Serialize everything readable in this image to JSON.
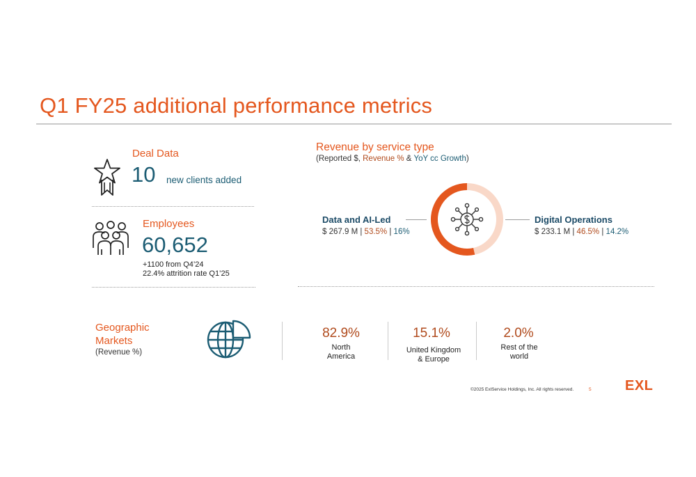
{
  "title": "Q1 FY25 additional performance metrics",
  "deal": {
    "label": "Deal Data",
    "value": "10",
    "caption": "new clients added"
  },
  "employees": {
    "label": "Employees",
    "value": "60,652",
    "note1": "+1100 from Q4’24",
    "note2": "22.4% attrition rate Q1’25"
  },
  "revenue": {
    "title": "Revenue by service type",
    "subtitle_open": "(Reported $, ",
    "subtitle_rev": "Revenue %",
    "subtitle_amp": " & ",
    "subtitle_yoy": "YoY cc Growth",
    "subtitle_close": ")",
    "left": {
      "name": "Data and AI-Led",
      "amount": "$ 267.9 M",
      "sep": " | ",
      "share": "53.5%",
      "growth": "16%"
    },
    "right": {
      "name": "Digital Operations",
      "amount": "$ 233.1 M",
      "sep": " | ",
      "share": "46.5%",
      "growth": "14.2%"
    },
    "donut_share": [
      53.5,
      46.5
    ]
  },
  "geo": {
    "label_line1": "Geographic",
    "label_line2": "Markets",
    "label_sub": "(Revenue %)",
    "markets": [
      {
        "pct": "82.9%",
        "name1": "North",
        "name2": "America"
      },
      {
        "pct": "15.1%",
        "name1": "United Kingdom",
        "name2": "& Europe"
      },
      {
        "pct": "2.0%",
        "name1": "Rest of the",
        "name2": "world"
      }
    ]
  },
  "footer": {
    "copyright": "©2025 ExlService Holdings, Inc. All rights reserved.",
    "page": "5",
    "logo": "EXL"
  },
  "colors": {
    "accent": "#e4571e",
    "teal": "#1b5c73",
    "donut_light": "#f9d8c8"
  }
}
